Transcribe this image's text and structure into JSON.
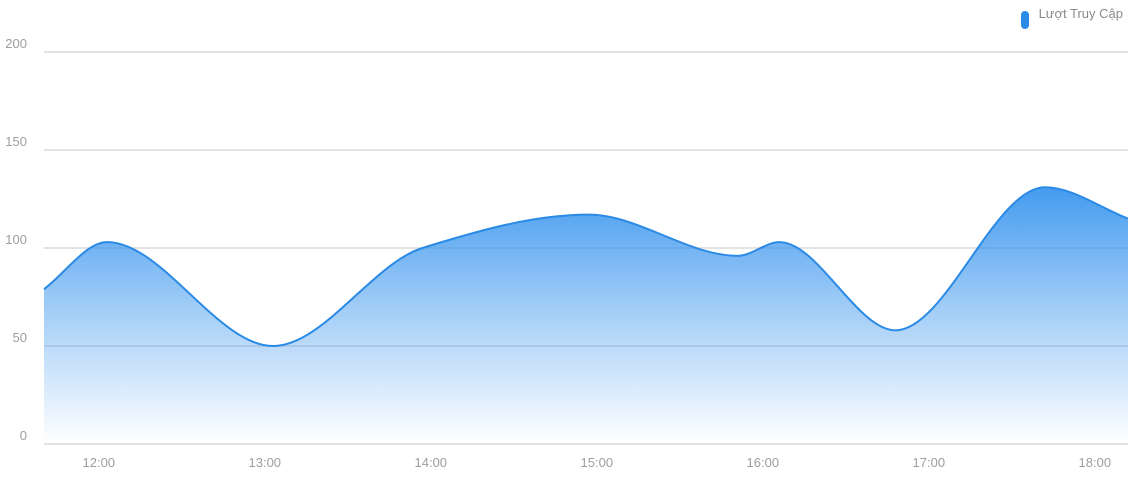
{
  "chart_data": {
    "type": "area",
    "title": "",
    "xlabel": "",
    "ylabel": "",
    "categories": [
      "12:00",
      "13:00",
      "14:00",
      "15:00",
      "16:00",
      "17:00",
      "18:00"
    ],
    "series": [
      {
        "name": "Lượt Truy Cập",
        "x": [
          11.67,
          12.05,
          13.05,
          13.95,
          14.95,
          15.85,
          16.1,
          16.8,
          17.7,
          18.2
        ],
        "values": [
          79,
          103,
          50,
          100,
          117,
          96,
          103,
          58,
          131,
          115
        ]
      }
    ],
    "ylim": [
      0,
      200
    ],
    "yticks": [
      0,
      50,
      100,
      150,
      200
    ],
    "xlim": [
      11.67,
      18.2
    ],
    "grid": true,
    "legend": "top-right",
    "colors": {
      "line": "#2a8ae6",
      "fill_top": "#3a96ee",
      "grid": "#e3e3e3",
      "legend_marker": "#2a8ae6"
    }
  }
}
